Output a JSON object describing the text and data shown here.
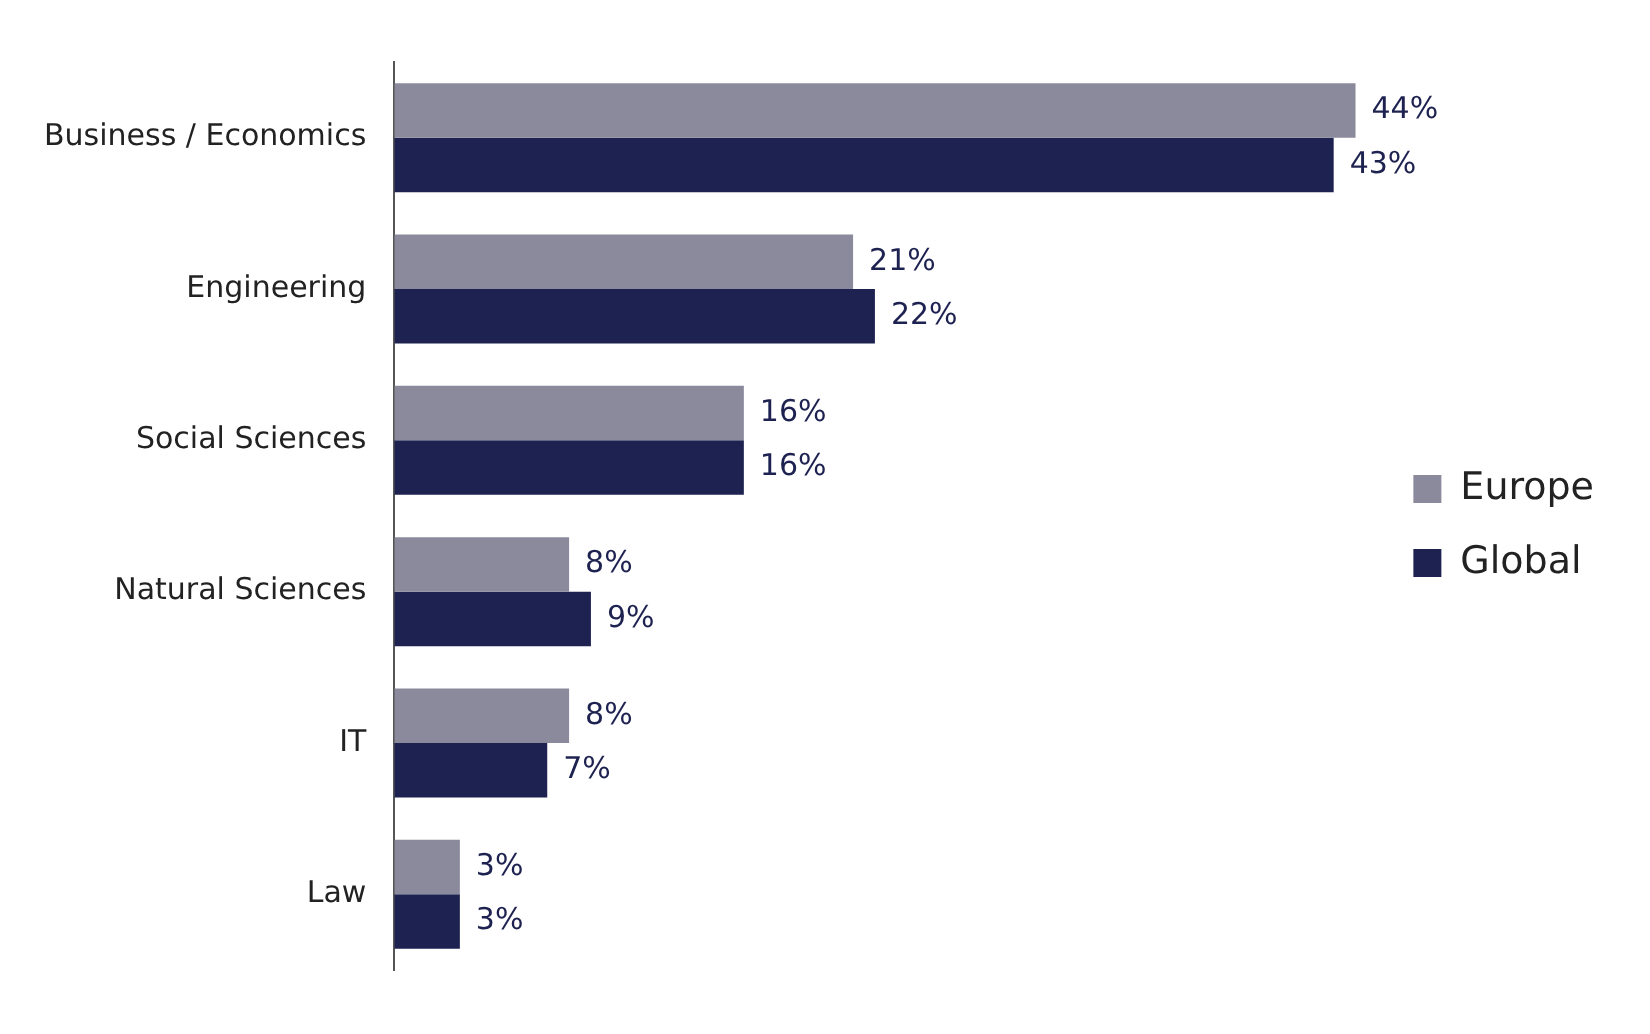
{
  "chart_data": {
    "type": "bar",
    "orientation": "horizontal",
    "categories": [
      "Business / Economics",
      "Engineering",
      "Social Sciences",
      "Natural Sciences",
      "IT",
      "Law"
    ],
    "series": [
      {
        "name": "Europe",
        "color": "#8a8a9c",
        "values": [
          44,
          21,
          16,
          8,
          8,
          3
        ],
        "value_labels": [
          "44%",
          "21%",
          "16%",
          "8%",
          "8%",
          "3%"
        ]
      },
      {
        "name": "Global",
        "color": "#1e2250",
        "values": [
          43,
          22,
          16,
          9,
          7,
          3
        ],
        "value_labels": [
          "43%",
          "22%",
          "16%",
          "9%",
          "7%",
          "3%"
        ]
      }
    ],
    "legend": "right"
  }
}
